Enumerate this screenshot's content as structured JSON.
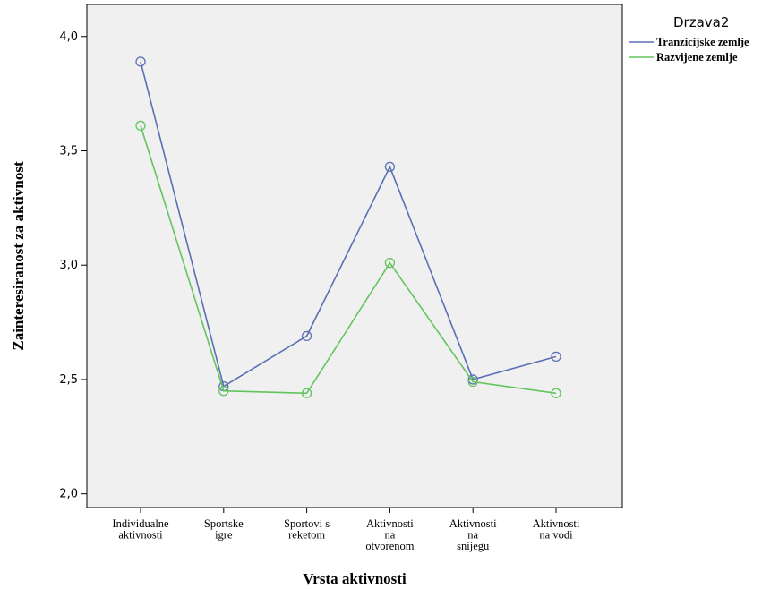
{
  "chart_data": {
    "type": "line",
    "categories": [
      [
        "Individualne",
        "aktivnosti"
      ],
      [
        "Sportske",
        "igre"
      ],
      [
        "Sportovi s",
        "reketom"
      ],
      [
        "Aktivnosti",
        "na",
        "otvorenom"
      ],
      [
        "Aktivnosti",
        "na",
        "snijegu"
      ],
      [
        "Aktivnosti",
        "na vodi"
      ]
    ],
    "series": [
      {
        "name": "Tranzicijske zemlje",
        "color": "#5a6fb5",
        "values": [
          3.89,
          2.47,
          2.69,
          3.43,
          2.5,
          2.6
        ]
      },
      {
        "name": "Razvijene zemlje",
        "color": "#63c45e",
        "values": [
          3.61,
          2.45,
          2.44,
          3.01,
          2.49,
          2.44
        ]
      }
    ],
    "ylim": [
      1.94,
      4.14
    ],
    "yticks": [
      "2,0",
      "2,5",
      "3,0",
      "3,5",
      "4,0"
    ],
    "yticks_values": [
      2.0,
      2.5,
      3.0,
      3.5,
      4.0
    ],
    "xlabel": "Vrsta aktivnosti",
    "ylabel": "Zainteresiranost za aktivnost",
    "legend_title": "Drzava2",
    "legend_position": "top-right",
    "grid": false,
    "plot_background": "#f0f0f0"
  }
}
